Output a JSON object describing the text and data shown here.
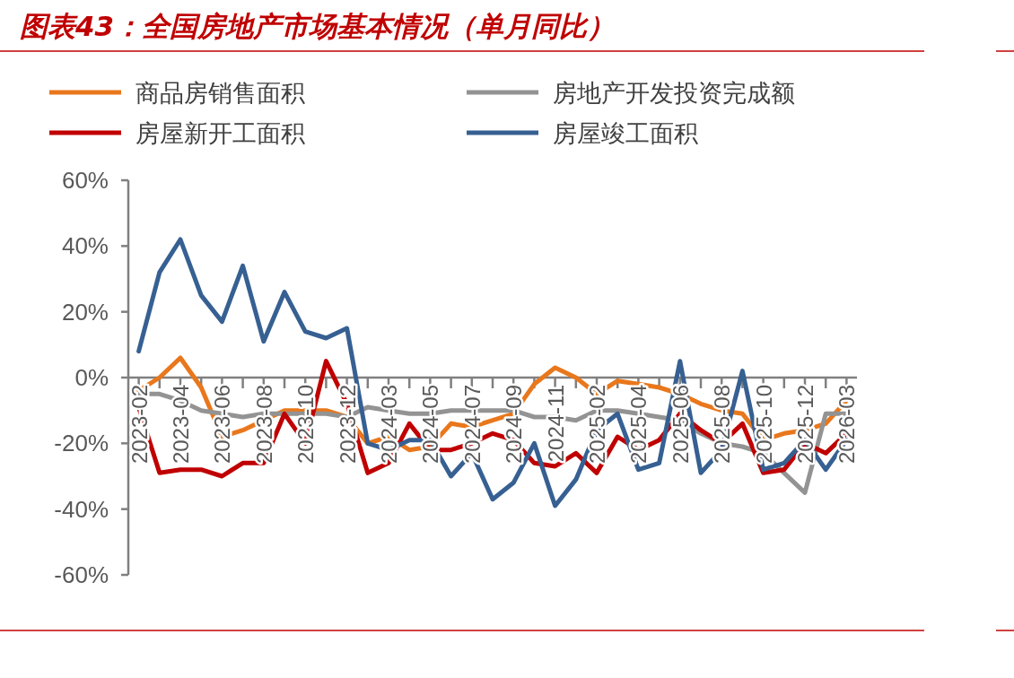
{
  "chart_data": {
    "type": "line",
    "title": "图表43：全国房地产市场基本情况（单月同比）",
    "categories": [
      "2023-02",
      null,
      "2023-04",
      null,
      "2023-06",
      null,
      "2023-08",
      null,
      "2023-10",
      null,
      "2023-12",
      null,
      "2024-03",
      null,
      "2024-05",
      null,
      "2024-07",
      null,
      "2024-09",
      null,
      "2024-11",
      null,
      "2025-02",
      null,
      "2025-04",
      null,
      "2025-06",
      null,
      "2025-08",
      null,
      "2025-10",
      null,
      "2025-12",
      null,
      "2026-03"
    ],
    "series": [
      {
        "name": "商品房销售面积",
        "color": "#e9771c",
        "values": [
          -4,
          0,
          6,
          -3,
          -18,
          -16,
          -13,
          -10,
          -10,
          -10,
          -12,
          -20,
          -18,
          -22,
          -21,
          -14,
          -15,
          -13,
          -11,
          -2,
          3,
          0,
          -5,
          -1,
          -2,
          -3,
          -5,
          -8,
          -10,
          -11,
          -19,
          -17,
          -16,
          -14,
          -7
        ]
      },
      {
        "name": "房地产开发投资完成额",
        "color": "#939393",
        "values": [
          -5,
          -5,
          -7,
          -10,
          -11,
          -12,
          -11,
          -11,
          -11,
          -11,
          -12,
          -9,
          -10,
          -11,
          -11,
          -10,
          -10,
          -10,
          -10,
          -12,
          -12,
          -13,
          -10,
          -10,
          -11,
          -12,
          -13,
          -17,
          -20,
          -21,
          -23,
          -29,
          -35,
          -11,
          -11
        ]
      },
      {
        "name": "房屋新开工面积",
        "color": "#c00000",
        "values": [
          -9,
          -29,
          -28,
          -28,
          -30,
          -26,
          -26,
          -11,
          -20,
          5,
          -8,
          -29,
          -26,
          -14,
          -22,
          -22,
          -20,
          -17,
          -19,
          -26,
          -27,
          -23,
          -29,
          -18,
          -22,
          -19,
          -11,
          -16,
          -20,
          -14,
          -29,
          -28,
          -20,
          -23,
          -17
        ]
      },
      {
        "name": "房屋竣工面积",
        "color": "#376092",
        "values": [
          8,
          32,
          42,
          25,
          17,
          34,
          11,
          26,
          14,
          12,
          15,
          -20,
          -22,
          -19,
          -19,
          -30,
          -23,
          -37,
          -32,
          -20,
          -39,
          -31,
          -16,
          -11,
          -28,
          -26,
          5,
          -29,
          -22,
          2,
          -28,
          -26,
          -19,
          -28,
          -19
        ]
      }
    ],
    "ylim": [
      -60,
      60
    ],
    "yticks": [
      {
        "value": -60,
        "label": "-60%"
      },
      {
        "value": -40,
        "label": "-40%"
      },
      {
        "value": -20,
        "label": "-20%"
      },
      {
        "value": 0,
        "label": "0%"
      },
      {
        "value": 20,
        "label": "20%"
      },
      {
        "value": 40,
        "label": "40%"
      },
      {
        "value": 60,
        "label": "60%"
      }
    ],
    "legend": "top"
  }
}
